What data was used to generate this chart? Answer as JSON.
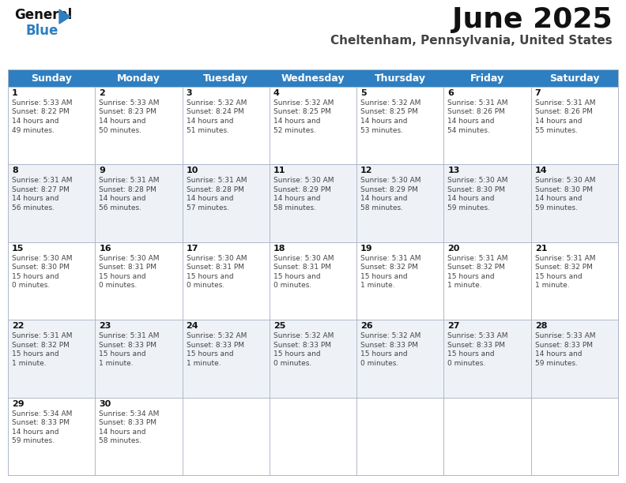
{
  "title": "June 2025",
  "subtitle": "Cheltenham, Pennsylvania, United States",
  "header_color": "#2e7fc1",
  "header_text_color": "#ffffff",
  "bg_color": "#ffffff",
  "cell_bg_light": "#eef2f7",
  "cell_bg_white": "#ffffff",
  "day_headers": [
    "Sunday",
    "Monday",
    "Tuesday",
    "Wednesday",
    "Thursday",
    "Friday",
    "Saturday"
  ],
  "calendar": [
    [
      {
        "day": "1",
        "sunrise": "5:33 AM",
        "sunset": "8:22 PM",
        "daylight": "14 hours and 49 minutes."
      },
      {
        "day": "2",
        "sunrise": "5:33 AM",
        "sunset": "8:23 PM",
        "daylight": "14 hours and 50 minutes."
      },
      {
        "day": "3",
        "sunrise": "5:32 AM",
        "sunset": "8:24 PM",
        "daylight": "14 hours and 51 minutes."
      },
      {
        "day": "4",
        "sunrise": "5:32 AM",
        "sunset": "8:25 PM",
        "daylight": "14 hours and 52 minutes."
      },
      {
        "day": "5",
        "sunrise": "5:32 AM",
        "sunset": "8:25 PM",
        "daylight": "14 hours and 53 minutes."
      },
      {
        "day": "6",
        "sunrise": "5:31 AM",
        "sunset": "8:26 PM",
        "daylight": "14 hours and 54 minutes."
      },
      {
        "day": "7",
        "sunrise": "5:31 AM",
        "sunset": "8:26 PM",
        "daylight": "14 hours and 55 minutes."
      }
    ],
    [
      {
        "day": "8",
        "sunrise": "5:31 AM",
        "sunset": "8:27 PM",
        "daylight": "14 hours and 56 minutes."
      },
      {
        "day": "9",
        "sunrise": "5:31 AM",
        "sunset": "8:28 PM",
        "daylight": "14 hours and 56 minutes."
      },
      {
        "day": "10",
        "sunrise": "5:31 AM",
        "sunset": "8:28 PM",
        "daylight": "14 hours and 57 minutes."
      },
      {
        "day": "11",
        "sunrise": "5:30 AM",
        "sunset": "8:29 PM",
        "daylight": "14 hours and 58 minutes."
      },
      {
        "day": "12",
        "sunrise": "5:30 AM",
        "sunset": "8:29 PM",
        "daylight": "14 hours and 58 minutes."
      },
      {
        "day": "13",
        "sunrise": "5:30 AM",
        "sunset": "8:30 PM",
        "daylight": "14 hours and 59 minutes."
      },
      {
        "day": "14",
        "sunrise": "5:30 AM",
        "sunset": "8:30 PM",
        "daylight": "14 hours and 59 minutes."
      }
    ],
    [
      {
        "day": "15",
        "sunrise": "5:30 AM",
        "sunset": "8:30 PM",
        "daylight": "15 hours and 0 minutes."
      },
      {
        "day": "16",
        "sunrise": "5:30 AM",
        "sunset": "8:31 PM",
        "daylight": "15 hours and 0 minutes."
      },
      {
        "day": "17",
        "sunrise": "5:30 AM",
        "sunset": "8:31 PM",
        "daylight": "15 hours and 0 minutes."
      },
      {
        "day": "18",
        "sunrise": "5:30 AM",
        "sunset": "8:31 PM",
        "daylight": "15 hours and 0 minutes."
      },
      {
        "day": "19",
        "sunrise": "5:31 AM",
        "sunset": "8:32 PM",
        "daylight": "15 hours and 1 minute."
      },
      {
        "day": "20",
        "sunrise": "5:31 AM",
        "sunset": "8:32 PM",
        "daylight": "15 hours and 1 minute."
      },
      {
        "day": "21",
        "sunrise": "5:31 AM",
        "sunset": "8:32 PM",
        "daylight": "15 hours and 1 minute."
      }
    ],
    [
      {
        "day": "22",
        "sunrise": "5:31 AM",
        "sunset": "8:32 PM",
        "daylight": "15 hours and 1 minute."
      },
      {
        "day": "23",
        "sunrise": "5:31 AM",
        "sunset": "8:33 PM",
        "daylight": "15 hours and 1 minute."
      },
      {
        "day": "24",
        "sunrise": "5:32 AM",
        "sunset": "8:33 PM",
        "daylight": "15 hours and 1 minute."
      },
      {
        "day": "25",
        "sunrise": "5:32 AM",
        "sunset": "8:33 PM",
        "daylight": "15 hours and 0 minutes."
      },
      {
        "day": "26",
        "sunrise": "5:32 AM",
        "sunset": "8:33 PM",
        "daylight": "15 hours and 0 minutes."
      },
      {
        "day": "27",
        "sunrise": "5:33 AM",
        "sunset": "8:33 PM",
        "daylight": "15 hours and 0 minutes."
      },
      {
        "day": "28",
        "sunrise": "5:33 AM",
        "sunset": "8:33 PM",
        "daylight": "14 hours and 59 minutes."
      }
    ],
    [
      {
        "day": "29",
        "sunrise": "5:34 AM",
        "sunset": "8:33 PM",
        "daylight": "14 hours and 59 minutes."
      },
      {
        "day": "30",
        "sunrise": "5:34 AM",
        "sunset": "8:33 PM",
        "daylight": "14 hours and 58 minutes."
      },
      null,
      null,
      null,
      null,
      null
    ]
  ],
  "text_color": "#444444",
  "day_num_color": "#111111",
  "separator_color": "#b0b8c8",
  "title_fontsize": 26,
  "subtitle_fontsize": 11,
  "header_fontsize": 9,
  "cell_day_fontsize": 8,
  "cell_text_fontsize": 6.5
}
